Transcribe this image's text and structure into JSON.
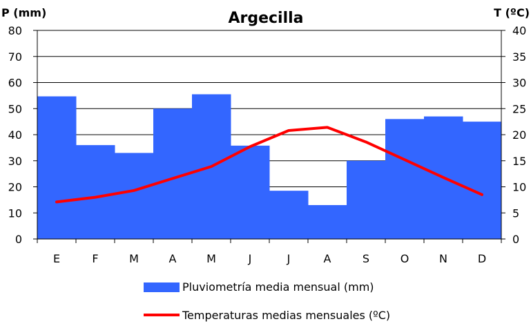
{
  "chart_data": {
    "type": "bar+line",
    "title": "Argecilla",
    "left_axis_label": "P (mm)",
    "right_axis_label": "T (ºC)",
    "categories": [
      "E",
      "F",
      "M",
      "A",
      "M",
      "J",
      "J",
      "A",
      "S",
      "O",
      "N",
      "D"
    ],
    "left_ylim": [
      0,
      80
    ],
    "left_ticks": [
      0,
      10,
      20,
      30,
      40,
      50,
      60,
      70,
      80
    ],
    "right_ylim": [
      0,
      40
    ],
    "right_ticks": [
      0,
      5,
      10,
      15,
      20,
      25,
      30,
      35,
      40
    ],
    "grid": true,
    "legend_position": "bottom",
    "series": [
      {
        "name": "Pluviometría media mensual (mm)",
        "type": "bar",
        "axis": "left",
        "color": "#3366ff",
        "values": [
          54.7,
          36,
          33,
          50,
          55.5,
          35.8,
          18.5,
          13,
          30,
          46,
          47,
          45
        ]
      },
      {
        "name": "Temperaturas medias mensuales (ºC)",
        "type": "line",
        "axis": "right",
        "color": "#ff0000",
        "values": [
          7.1,
          8,
          9.3,
          11.6,
          13.9,
          17.7,
          20.8,
          21.4,
          18.6,
          15.2,
          11.8,
          8.5
        ]
      }
    ]
  }
}
